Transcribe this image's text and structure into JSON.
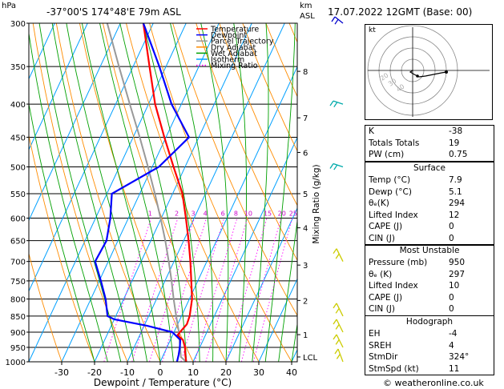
{
  "header": {
    "hpa_label": "hPa",
    "location": "-37°00'S 174°48'E 79m ASL",
    "km_label": "km",
    "asl_label": "ASL",
    "datetime": "17.07.2022 12GMT (Base: 00)"
  },
  "legend": [
    {
      "label": "Temperature",
      "color": "#ff0000",
      "style": "solid"
    },
    {
      "label": "Dewpoint",
      "color": "#0000ff",
      "style": "solid"
    },
    {
      "label": "Parcel Trajectory",
      "color": "#999999",
      "style": "solid"
    },
    {
      "label": "Dry Adiabat",
      "color": "#ff8c00",
      "style": "solid"
    },
    {
      "label": "Wet Adiabat",
      "color": "#00a000",
      "style": "solid"
    },
    {
      "label": "Isotherm",
      "color": "#00a0ff",
      "style": "solid"
    },
    {
      "label": "Mixing Ratio",
      "color": "#ff00ff",
      "style": "dotted"
    }
  ],
  "chart_data": {
    "type": "line",
    "xlabel": "Dewpoint / Temperature (°C)",
    "right_axis_label": "Mixing Ratio (g/kg)",
    "xlim": [
      -35,
      40
    ],
    "pressure_range": [
      1000,
      300
    ],
    "pressure_ticks": [
      300,
      350,
      400,
      450,
      500,
      550,
      600,
      650,
      700,
      750,
      800,
      850,
      900,
      950,
      1000
    ],
    "x_ticks": [
      -30,
      -20,
      -10,
      0,
      10,
      20,
      30,
      40
    ],
    "km_ticks": [
      {
        "label": "8",
        "p": 356
      },
      {
        "label": "7",
        "p": 420
      },
      {
        "label": "6",
        "p": 475
      },
      {
        "label": "5",
        "p": 550
      },
      {
        "label": "4",
        "p": 621
      },
      {
        "label": "3",
        "p": 709
      },
      {
        "label": "2",
        "p": 804
      },
      {
        "label": "1",
        "p": 908
      },
      {
        "label": "LCL",
        "p": 983
      }
    ],
    "mixing_ratio_labels": [
      "1",
      "2",
      "3",
      "4",
      "6",
      "8",
      "10",
      "15",
      "20",
      "25"
    ],
    "series": [
      {
        "name": "Temperature",
        "color": "#ff0000",
        "points": [
          [
            1000,
            7.9
          ],
          [
            975,
            6.6
          ],
          [
            950,
            5.5
          ],
          [
            925,
            3.8
          ],
          [
            910,
            1.5
          ],
          [
            900,
            1.8
          ],
          [
            875,
            2.8
          ],
          [
            850,
            2.5
          ],
          [
            800,
            0.8
          ],
          [
            750,
            -2.0
          ],
          [
            700,
            -5.0
          ],
          [
            650,
            -8.5
          ],
          [
            600,
            -12.5
          ],
          [
            550,
            -17.0
          ],
          [
            500,
            -23.5
          ],
          [
            450,
            -30.5
          ],
          [
            400,
            -38.0
          ],
          [
            350,
            -45.0
          ],
          [
            300,
            -53.0
          ]
        ]
      },
      {
        "name": "Dewpoint",
        "color": "#0000ff",
        "points": [
          [
            1000,
            5.1
          ],
          [
            975,
            4.6
          ],
          [
            950,
            3.9
          ],
          [
            925,
            3.0
          ],
          [
            900,
            -0.5
          ],
          [
            880,
            -9.0
          ],
          [
            860,
            -20.0
          ],
          [
            850,
            -22.5
          ],
          [
            800,
            -25.5
          ],
          [
            750,
            -29.5
          ],
          [
            700,
            -34.0
          ],
          [
            650,
            -33.5
          ],
          [
            600,
            -35.5
          ],
          [
            550,
            -38.5
          ],
          [
            500,
            -28.0
          ],
          [
            450,
            -23.0
          ],
          [
            400,
            -33.0
          ],
          [
            350,
            -42.0
          ],
          [
            300,
            -53.0
          ]
        ]
      },
      {
        "name": "Parcel Trajectory",
        "color": "#999999",
        "points": [
          [
            1000,
            7.9
          ],
          [
            983,
            5.6
          ],
          [
            950,
            4.0
          ],
          [
            900,
            1.5
          ],
          [
            850,
            -1.6
          ],
          [
            800,
            -4.8
          ],
          [
            750,
            -8.0
          ],
          [
            700,
            -11.6
          ],
          [
            650,
            -15.6
          ],
          [
            600,
            -20.2
          ],
          [
            550,
            -25.4
          ],
          [
            500,
            -31.3
          ],
          [
            450,
            -38.0
          ],
          [
            400,
            -45.7
          ],
          [
            350,
            -54.3
          ],
          [
            300,
            -64.0
          ]
        ]
      }
    ]
  },
  "indices": [
    {
      "label": "K",
      "value": "-38"
    },
    {
      "label": "Totals Totals",
      "value": "19"
    },
    {
      "label": "PW (cm)",
      "value": "0.75"
    }
  ],
  "surface": {
    "title": "Surface",
    "rows": [
      {
        "label": "Temp (°C)",
        "value": "7.9"
      },
      {
        "label": "Dewp (°C)",
        "value": "5.1"
      },
      {
        "label": "θₑ(K)",
        "value": "294"
      },
      {
        "label": "Lifted Index",
        "value": "12"
      },
      {
        "label": "CAPE (J)",
        "value": "0"
      },
      {
        "label": "CIN (J)",
        "value": "0"
      }
    ]
  },
  "most_unstable": {
    "title": "Most Unstable",
    "rows": [
      {
        "label": "Pressure (mb)",
        "value": "950"
      },
      {
        "label": "θₑ (K)",
        "value": "297"
      },
      {
        "label": "Lifted Index",
        "value": "10"
      },
      {
        "label": "CAPE (J)",
        "value": "0"
      },
      {
        "label": "CIN (J)",
        "value": "0"
      }
    ]
  },
  "hodograph_table": {
    "title": "Hodograph",
    "rows": [
      {
        "label": "EH",
        "value": "-4"
      },
      {
        "label": "SREH",
        "value": "4"
      },
      {
        "label": "StmDir",
        "value": "324°"
      },
      {
        "label": "StmSpd (kt)",
        "value": "11"
      }
    ]
  },
  "hodograph": {
    "label": "kt",
    "ring_labels": [
      "20",
      "30",
      "40"
    ],
    "trace_color": "#000000"
  },
  "wind_barb_colors": {
    "upper": "#0000cc",
    "mid": "#00aaaa",
    "low": "#cccc00"
  },
  "footer": {
    "copyright": "© weatheronline.co.uk"
  }
}
